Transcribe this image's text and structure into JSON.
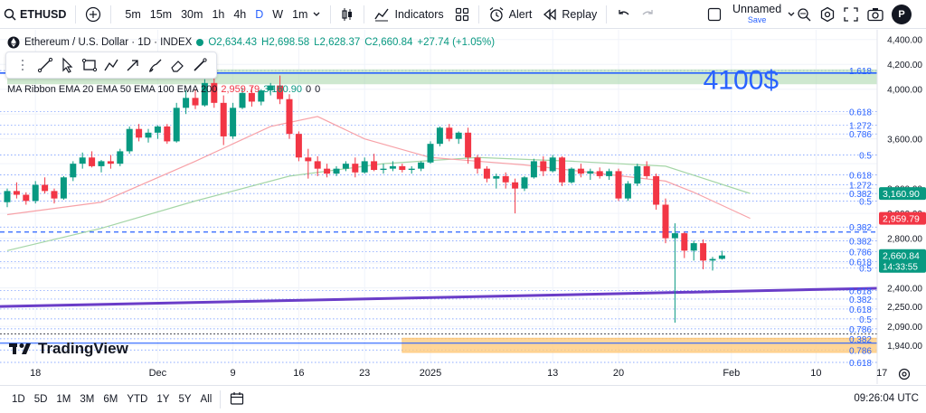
{
  "toolbar": {
    "symbol": "ETHUSD",
    "timeframes": [
      "5m",
      "15m",
      "30m",
      "1h",
      "4h",
      "D",
      "W",
      "1m"
    ],
    "active_timeframe": "D",
    "indicators_label": "Indicators",
    "alert_label": "Alert",
    "replay_label": "Replay",
    "layout_name": "Unnamed",
    "save_label": "Save",
    "avatar_initial": "P"
  },
  "legend": {
    "title": "Ethereum / U.S. Dollar · 1D · INDEX",
    "open": "O2,634.43",
    "high": "H2,698.58",
    "low": "L2,628.37",
    "close": "C2,660.84",
    "change": "+27.74 (+1.05%)",
    "ma_label": "MA Ribbon EMA 20 EMA 50 EMA 100 EMA 200",
    "ma_v1": "2,959.79",
    "ma_v2": "3,160.90",
    "ma_v3": "0",
    "ma_v4": "0"
  },
  "annotation": {
    "text": "4100$",
    "color": "#2962ff"
  },
  "watermark": "TradingView",
  "chart_data": {
    "type": "candlestick",
    "title": "Ethereum / U.S. Dollar · 1D · INDEX",
    "y_range": [
      1800,
      4420
    ],
    "y_ticks": [
      4400,
      4200,
      4000,
      3800,
      3600,
      3400,
      3200,
      3000,
      2800,
      2600,
      2400,
      2250,
      2090,
      1940
    ],
    "y_tick_labels": [
      "4,400.00",
      "4,200.00",
      "4,000.00",
      "",
      "3,600.00",
      "",
      "3,200.00",
      "3,000.00",
      "2,800.00",
      "",
      "2,400.00",
      "2,250.00",
      "2,090.00",
      "1,940.00"
    ],
    "x_range": [
      0,
      87
    ],
    "x_ticks": [
      {
        "d": 3,
        "label": "18"
      },
      {
        "d": 16,
        "label": "Dec"
      },
      {
        "d": 24,
        "label": "9"
      },
      {
        "d": 31,
        "label": "16"
      },
      {
        "d": 38,
        "label": "23"
      },
      {
        "d": 45,
        "label": "2025"
      },
      {
        "d": 58,
        "label": "13"
      },
      {
        "d": 65,
        "label": "20"
      },
      {
        "d": 77,
        "label": "Feb"
      },
      {
        "d": 86,
        "label": "10"
      },
      {
        "d": 93,
        "label": "17"
      }
    ],
    "candles": [
      [
        3090,
        3200,
        3050,
        3180
      ],
      [
        3180,
        3250,
        3120,
        3150
      ],
      [
        3150,
        3170,
        3070,
        3100
      ],
      [
        3100,
        3260,
        3080,
        3230
      ],
      [
        3230,
        3290,
        3160,
        3180
      ],
      [
        3180,
        3200,
        3080,
        3120
      ],
      [
        3120,
        3300,
        3110,
        3290
      ],
      [
        3290,
        3420,
        3260,
        3400
      ],
      [
        3400,
        3490,
        3360,
        3450
      ],
      [
        3450,
        3500,
        3370,
        3380
      ],
      [
        3380,
        3430,
        3330,
        3420
      ],
      [
        3420,
        3470,
        3360,
        3400
      ],
      [
        3400,
        3520,
        3380,
        3500
      ],
      [
        3500,
        3700,
        3480,
        3680
      ],
      [
        3680,
        3720,
        3580,
        3610
      ],
      [
        3610,
        3680,
        3570,
        3650
      ],
      [
        3650,
        3710,
        3600,
        3700
      ],
      [
        3700,
        3720,
        3560,
        3580
      ],
      [
        3580,
        3890,
        3570,
        3850
      ],
      [
        3850,
        3990,
        3800,
        3930
      ],
      [
        3930,
        4000,
        3840,
        3870
      ],
      [
        3870,
        4080,
        3860,
        4050
      ],
      [
        4050,
        4090,
        3850,
        3890
      ],
      [
        3890,
        3950,
        3550,
        3620
      ],
      [
        3620,
        3890,
        3600,
        3850
      ],
      [
        3850,
        4010,
        3840,
        3970
      ],
      [
        3970,
        4020,
        3860,
        3900
      ],
      [
        3900,
        4000,
        3870,
        3990
      ],
      [
        3990,
        4050,
        3950,
        4030
      ],
      [
        4030,
        4110,
        3880,
        3920
      ],
      [
        3920,
        3960,
        3600,
        3640
      ],
      [
        3640,
        3660,
        3420,
        3450
      ],
      [
        3450,
        3520,
        3280,
        3420
      ],
      [
        3420,
        3460,
        3300,
        3360
      ],
      [
        3360,
        3400,
        3290,
        3320
      ],
      [
        3320,
        3380,
        3300,
        3360
      ],
      [
        3360,
        3420,
        3340,
        3400
      ],
      [
        3400,
        3450,
        3290,
        3330
      ],
      [
        3330,
        3450,
        3320,
        3420
      ],
      [
        3420,
        3480,
        3340,
        3350
      ],
      [
        3350,
        3400,
        3320,
        3360
      ],
      [
        3360,
        3420,
        3340,
        3380
      ],
      [
        3380,
        3400,
        3330,
        3350
      ],
      [
        3350,
        3380,
        3320,
        3360
      ],
      [
        3360,
        3420,
        3340,
        3410
      ],
      [
        3410,
        3580,
        3400,
        3560
      ],
      [
        3560,
        3700,
        3540,
        3690
      ],
      [
        3690,
        3720,
        3580,
        3600
      ],
      [
        3600,
        3660,
        3560,
        3650
      ],
      [
        3650,
        3690,
        3400,
        3450
      ],
      [
        3450,
        3470,
        3320,
        3360
      ],
      [
        3360,
        3380,
        3250,
        3280
      ],
      [
        3280,
        3320,
        3200,
        3300
      ],
      [
        3300,
        3330,
        3200,
        3250
      ],
      [
        3250,
        3280,
        3000,
        3200
      ],
      [
        3200,
        3300,
        3180,
        3290
      ],
      [
        3290,
        3440,
        3280,
        3420
      ],
      [
        3420,
        3460,
        3300,
        3340
      ],
      [
        3340,
        3470,
        3330,
        3450
      ],
      [
        3450,
        3460,
        3220,
        3250
      ],
      [
        3250,
        3370,
        3240,
        3360
      ],
      [
        3360,
        3400,
        3290,
        3320
      ],
      [
        3320,
        3360,
        3270,
        3340
      ],
      [
        3340,
        3370,
        3280,
        3300
      ],
      [
        3300,
        3360,
        3270,
        3340
      ],
      [
        3340,
        3360,
        3100,
        3120
      ],
      [
        3120,
        3260,
        3100,
        3240
      ],
      [
        3240,
        3400,
        3220,
        3380
      ],
      [
        3380,
        3420,
        3280,
        3300
      ],
      [
        3300,
        3320,
        3030,
        3070
      ],
      [
        3070,
        3120,
        2760,
        2800
      ],
      [
        2800,
        2920,
        2120,
        2840
      ],
      [
        2840,
        2850,
        2640,
        2700
      ],
      [
        2700,
        2780,
        2620,
        2760
      ],
      [
        2760,
        2790,
        2550,
        2620
      ],
      [
        2620,
        2650,
        2540,
        2633
      ],
      [
        2634,
        2699,
        2628,
        2661
      ]
    ],
    "ema_20": [
      [
        0,
        2990
      ],
      [
        10,
        3090
      ],
      [
        20,
        3420
      ],
      [
        28,
        3700
      ],
      [
        33,
        3780
      ],
      [
        38,
        3600
      ],
      [
        45,
        3450
      ],
      [
        55,
        3390
      ],
      [
        62,
        3330
      ],
      [
        70,
        3260
      ],
      [
        73,
        3170
      ],
      [
        79,
        2960
      ]
    ],
    "ema_50": [
      [
        0,
        2700
      ],
      [
        10,
        2880
      ],
      [
        20,
        3100
      ],
      [
        30,
        3300
      ],
      [
        40,
        3400
      ],
      [
        50,
        3450
      ],
      [
        60,
        3420
      ],
      [
        70,
        3380
      ],
      [
        79,
        3160
      ]
    ],
    "fib_levels_right": [
      {
        "label": "1.618",
        "y": 4150
      },
      {
        "label": "0.618",
        "y": 3820
      },
      {
        "label": "1.272",
        "y": 3710
      },
      {
        "label": "0.786",
        "y": 3640
      },
      {
        "label": "0.5",
        "y": 3470
      },
      {
        "label": "0.618",
        "y": 3310
      },
      {
        "label": "1.272",
        "y": 3230
      },
      {
        "label": "0.382",
        "y": 3160
      },
      {
        "label": "0.5",
        "y": 3100
      },
      {
        "label": "0.382",
        "y": 2890
      },
      {
        "label": "0.382",
        "y": 2780
      },
      {
        "label": "0.786",
        "y": 2690
      },
      {
        "label": "0.618",
        "y": 2610
      },
      {
        "label": "0.5",
        "y": 2560
      },
      {
        "label": "0.618",
        "y": 2380
      },
      {
        "label": "0.382",
        "y": 2310
      },
      {
        "label": "0.618",
        "y": 2230
      },
      {
        "label": "0.5",
        "y": 2150
      },
      {
        "label": "0.786",
        "y": 2070
      },
      {
        "label": "0.382",
        "y": 1990
      },
      {
        "label": "0.786",
        "y": 1900
      },
      {
        "label": "0.618",
        "y": 1800
      }
    ],
    "resistance_zone": {
      "x_from": 0,
      "x_to": 93,
      "y_low": 4040,
      "y_high": 4160
    },
    "support_zone": {
      "x_from": 42,
      "x_to": 113,
      "y_low": 1880,
      "y_high": 1995
    },
    "trendline": {
      "from": [
        0,
        2250
      ],
      "to": [
        126,
        2450
      ]
    },
    "horizontal_dashed": [
      {
        "y": 2850,
        "color": "#2962ff"
      },
      {
        "y": 4130,
        "color": "#2962ff"
      }
    ],
    "price_badges": [
      {
        "value": "3,160.90",
        "y": 3160,
        "color": "#089981"
      },
      {
        "value": "2,959.79",
        "y": 2960,
        "color": "#f23645"
      },
      {
        "value": "2,660.84",
        "sub": "14:33:55",
        "y": 2661,
        "color": "#089981"
      }
    ],
    "colors": {
      "up": "#089981",
      "down": "#f23645",
      "ema20": "#f7a2a8",
      "ema50": "#a5d6a7",
      "trend": "#6a3dc8",
      "fib": "#2962ff"
    }
  },
  "time_axis": {
    "labels": [
      "18",
      "Dec",
      "9",
      "16",
      "23",
      "2025",
      "13",
      "20",
      "Feb",
      "10",
      "17"
    ]
  },
  "bottombar": {
    "ranges": [
      "1D",
      "5D",
      "1M",
      "3M",
      "6M",
      "YTD",
      "1Y",
      "5Y",
      "All"
    ],
    "clock": "09:26:04 UTC"
  }
}
